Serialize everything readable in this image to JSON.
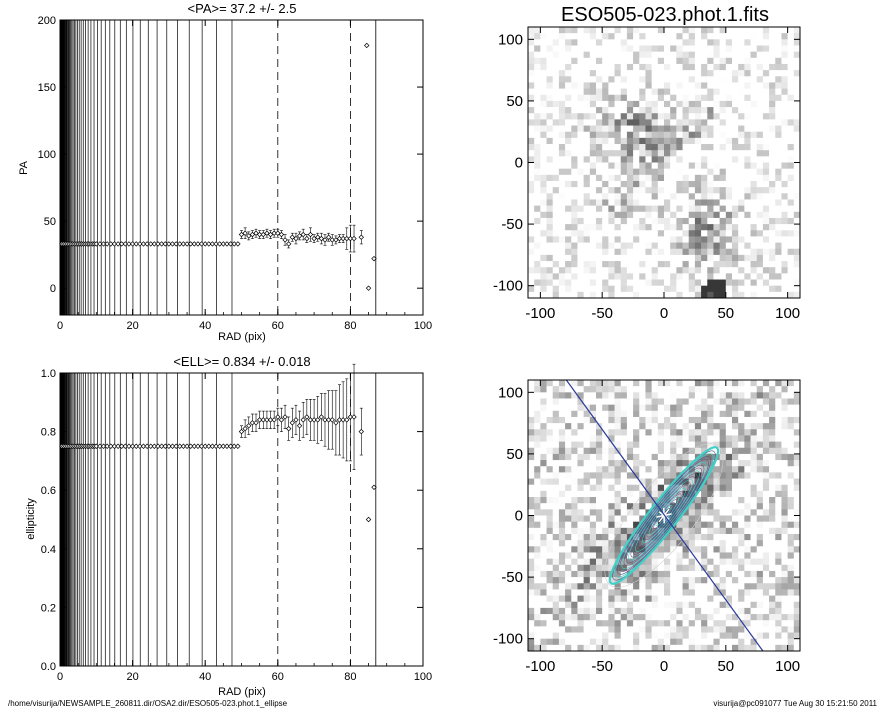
{
  "chart_data": [
    {
      "type": "scatter",
      "title": "<PA>=  37.2 +/-   2.5",
      "xlabel": "RAD (pix)",
      "ylabel": "PA",
      "xlim": [
        0,
        100
      ],
      "ylim": [
        -20,
        200
      ],
      "xticks": [
        "0",
        "20",
        "40",
        "60",
        "80",
        "100"
      ],
      "yticks": [
        "0",
        "50",
        "100",
        "150",
        "200"
      ],
      "dashed_lines_x": [
        60,
        80
      ],
      "solid_line_x": 87,
      "series": [
        {
          "x": [
            0.5,
            1,
            1.5,
            2,
            2.5,
            3,
            3.5,
            4,
            4.5,
            5,
            5.5,
            6,
            6.5,
            7,
            7.5,
            8,
            8.5,
            9,
            9.5,
            10,
            11,
            12,
            13,
            14,
            15,
            16,
            17,
            18,
            19,
            20,
            21,
            22,
            23,
            24,
            25,
            26,
            27,
            28,
            29,
            30,
            31,
            32,
            33,
            34,
            35,
            36,
            37,
            38,
            39,
            40,
            41,
            42,
            43,
            44,
            45,
            46,
            47,
            48,
            49
          ],
          "y": [
            33,
            33,
            33,
            33,
            33,
            33,
            33,
            33,
            33,
            33,
            33,
            33,
            33,
            33,
            33,
            33,
            33,
            33,
            33,
            33,
            33,
            33,
            33,
            33,
            33,
            33,
            33,
            33,
            33,
            33,
            33,
            33,
            33,
            33,
            33,
            33,
            33,
            33,
            33,
            33,
            33,
            33,
            33,
            33,
            33,
            33,
            33,
            33,
            33,
            33,
            33,
            33,
            33,
            33,
            33,
            33,
            33,
            33,
            33
          ]
        },
        {
          "x": [
            50,
            51,
            52,
            53,
            54,
            55,
            56,
            57,
            58,
            59,
            60,
            61,
            62,
            63,
            64,
            65,
            66,
            67,
            68,
            69,
            70,
            71,
            72,
            73,
            74,
            75,
            76,
            77,
            78,
            79,
            80,
            81,
            83,
            85,
            86.5
          ],
          "y": [
            40,
            41,
            39,
            40,
            41,
            40,
            40,
            41,
            40,
            41,
            41,
            40,
            36,
            33,
            38,
            37,
            39,
            40,
            37,
            40,
            37,
            38,
            37,
            36,
            38,
            36,
            36,
            37,
            37,
            37,
            37,
            37,
            38,
            0,
            22
          ],
          "err": [
            3,
            4,
            3,
            3,
            3,
            3,
            3,
            3,
            3,
            3,
            3,
            3,
            4,
            3,
            3,
            4,
            3,
            4,
            3,
            5,
            3,
            3,
            4,
            4,
            3,
            4,
            3,
            3,
            3,
            8,
            10,
            10,
            5,
            0,
            0
          ]
        },
        {
          "x": [
            84.5
          ],
          "y": [
            181
          ],
          "err": [
            0
          ]
        }
      ]
    },
    {
      "type": "scatter",
      "title": "<ELL>= 0.834 +/-  0.018",
      "xlabel": "RAD (pix)",
      "ylabel": "ellipticity",
      "xlim": [
        0,
        100
      ],
      "ylim": [
        0,
        1
      ],
      "xticks": [
        "0",
        "20",
        "40",
        "60",
        "80",
        "100"
      ],
      "yticks": [
        "0.0",
        "0.2",
        "0.4",
        "0.6",
        "0.8",
        "1.0"
      ],
      "dashed_lines_x": [
        60,
        80
      ],
      "solid_line_x": 87,
      "series": [
        {
          "x": [
            0.5,
            1,
            1.5,
            2,
            2.5,
            3,
            3.5,
            4,
            4.5,
            5,
            5.5,
            6,
            6.5,
            7,
            7.5,
            8,
            8.5,
            9,
            9.5,
            10,
            11,
            12,
            13,
            14,
            15,
            16,
            17,
            18,
            19,
            20,
            21,
            22,
            23,
            24,
            25,
            26,
            27,
            28,
            29,
            30,
            31,
            32,
            33,
            34,
            35,
            36,
            37,
            38,
            39,
            40,
            41,
            42,
            43,
            44,
            45,
            46,
            47,
            48,
            49
          ],
          "y": [
            0.75,
            0.75,
            0.75,
            0.75,
            0.75,
            0.75,
            0.75,
            0.75,
            0.75,
            0.75,
            0.75,
            0.75,
            0.75,
            0.75,
            0.75,
            0.75,
            0.75,
            0.75,
            0.75,
            0.75,
            0.75,
            0.75,
            0.75,
            0.75,
            0.75,
            0.75,
            0.75,
            0.75,
            0.75,
            0.75,
            0.75,
            0.75,
            0.75,
            0.75,
            0.75,
            0.75,
            0.75,
            0.75,
            0.75,
            0.75,
            0.75,
            0.75,
            0.75,
            0.75,
            0.75,
            0.75,
            0.75,
            0.75,
            0.75,
            0.75,
            0.75,
            0.75,
            0.75,
            0.75,
            0.75,
            0.75,
            0.75,
            0.75,
            0.75
          ]
        },
        {
          "x": [
            50,
            51,
            52,
            53,
            54,
            55,
            56,
            57,
            58,
            59,
            60,
            61,
            62,
            63,
            64,
            65,
            66,
            67,
            68,
            69,
            70,
            71,
            72,
            73,
            74,
            75,
            76,
            77,
            78,
            79,
            80,
            81,
            83,
            85,
            86.5
          ],
          "y": [
            0.8,
            0.81,
            0.82,
            0.83,
            0.83,
            0.84,
            0.84,
            0.84,
            0.84,
            0.84,
            0.85,
            0.84,
            0.85,
            0.81,
            0.83,
            0.84,
            0.82,
            0.84,
            0.85,
            0.84,
            0.84,
            0.84,
            0.85,
            0.84,
            0.84,
            0.84,
            0.83,
            0.84,
            0.84,
            0.84,
            0.85,
            0.85,
            0.8,
            0.5,
            0.61
          ],
          "err": [
            0.02,
            0.03,
            0.03,
            0.03,
            0.03,
            0.03,
            0.03,
            0.03,
            0.03,
            0.03,
            0.03,
            0.04,
            0.04,
            0.04,
            0.05,
            0.05,
            0.05,
            0.06,
            0.06,
            0.07,
            0.07,
            0.08,
            0.08,
            0.09,
            0.1,
            0.1,
            0.11,
            0.12,
            0.13,
            0.14,
            0.15,
            0.18,
            0.08,
            0,
            0
          ]
        }
      ]
    },
    {
      "type": "heatmap",
      "title": "ESO505-023.phot.1.fits",
      "xlim": [
        -110,
        110
      ],
      "ylim": [
        -110,
        110
      ],
      "xticks": [
        "-100",
        "-50",
        "0",
        "50",
        "100"
      ],
      "yticks": [
        "-100",
        "-50",
        "0",
        "50",
        "100"
      ]
    },
    {
      "type": "heatmap",
      "title": "",
      "xlim": [
        -110,
        110
      ],
      "ylim": [
        -110,
        110
      ],
      "xticks": [
        "-100",
        "-50",
        "0",
        "50",
        "100"
      ],
      "yticks": [
        "-100",
        "-50",
        "0",
        "50",
        "100"
      ],
      "overlay": "fitted ellipse contours and major-axis line"
    }
  ],
  "footer": {
    "left": "/home/visurija/NEWSAMPLE_260811.dir/OSA2.dir/ESO505-023.phot.1_ellipse",
    "right": "visurija@pc091077  Tue Aug 30 15:21:50 2011"
  },
  "colors": {
    "ellipse": "#40d0c8",
    "axis_line": "#2a3a9a"
  }
}
